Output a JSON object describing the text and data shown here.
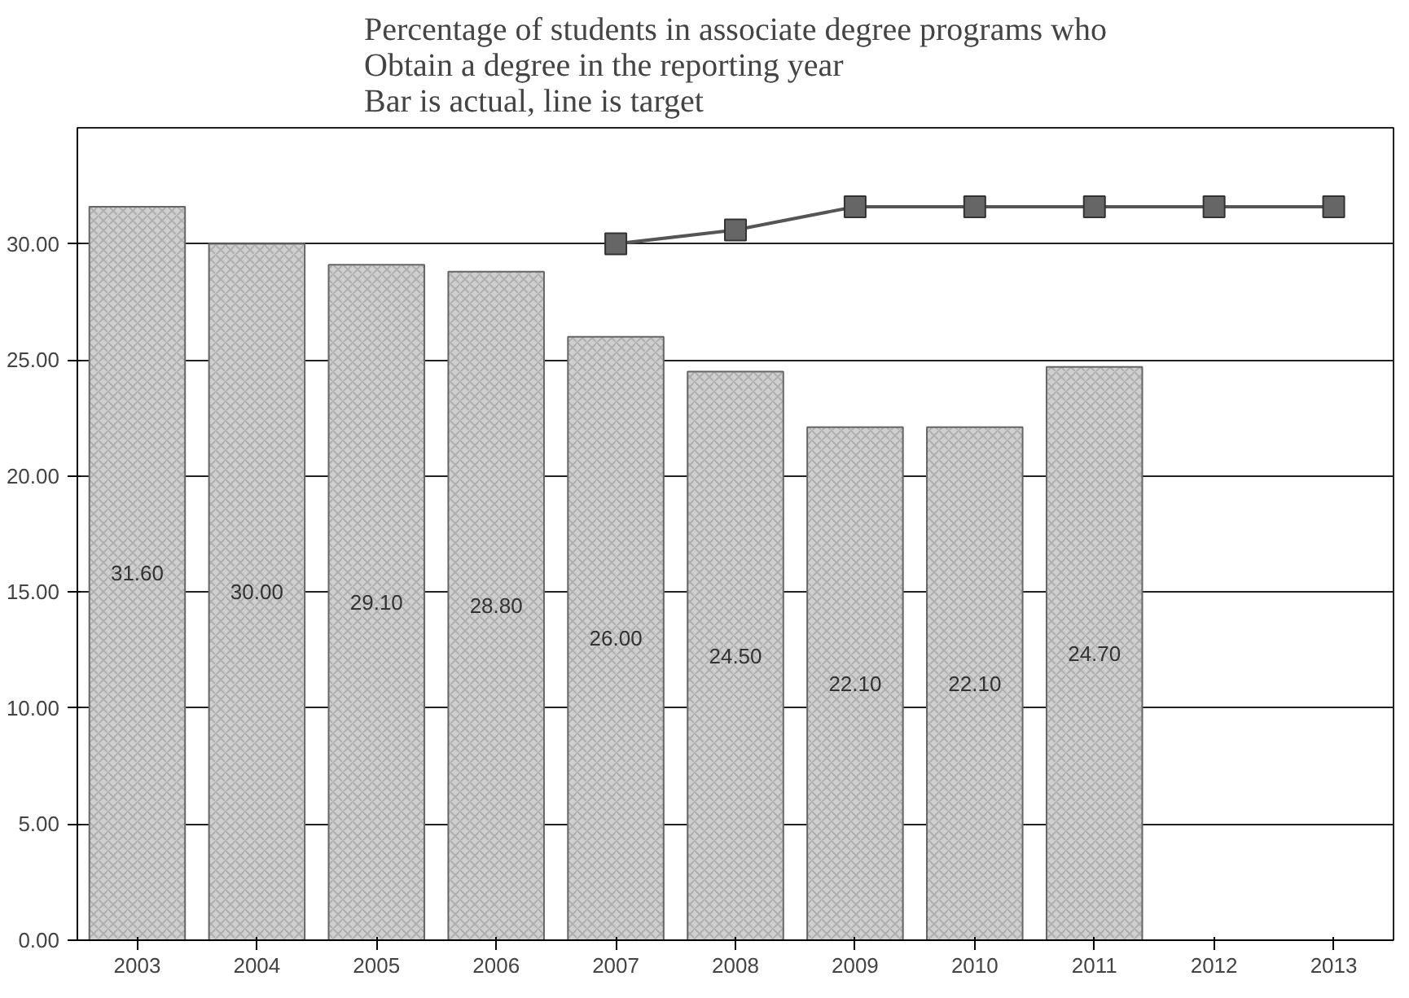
{
  "chart_data": {
    "type": "bar",
    "title": "Percentage of students in associate degree programs who\nObtain a degree in the reporting year\nBar is actual, line is target",
    "categories": [
      "2003",
      "2004",
      "2005",
      "2006",
      "2007",
      "2008",
      "2009",
      "2010",
      "2011",
      "2012",
      "2013"
    ],
    "series": [
      {
        "color": "#cfcfcf",
        "values": [
          31.6,
          30.0,
          29.1,
          28.8,
          26.0,
          24.5,
          22.1,
          22.1,
          24.7,
          null,
          null
        ],
        "value_labels": [
          "31.60",
          "30.00",
          "29.10",
          "28.80",
          "26.00",
          "24.50",
          "22.10",
          "22.10",
          "24.70",
          null,
          null
        ]
      },
      {
        "type": "line",
        "color": "#555555",
        "values": [
          null,
          null,
          null,
          null,
          30.0,
          30.6,
          31.6,
          31.6,
          31.6,
          31.6,
          31.6
        ]
      }
    ],
    "marker": "square",
    "ylim": [
      0,
      35
    ],
    "yticks": [
      {
        "value": 0,
        "label": "0.00"
      },
      {
        "value": 5,
        "label": "5.00"
      },
      {
        "value": 10,
        "label": "10.00"
      },
      {
        "value": 15,
        "label": "15.00"
      },
      {
        "value": 20,
        "label": "20.00"
      },
      {
        "value": 25,
        "label": "25.00"
      },
      {
        "value": 30,
        "label": "30.00"
      }
    ],
    "grid": "y"
  }
}
